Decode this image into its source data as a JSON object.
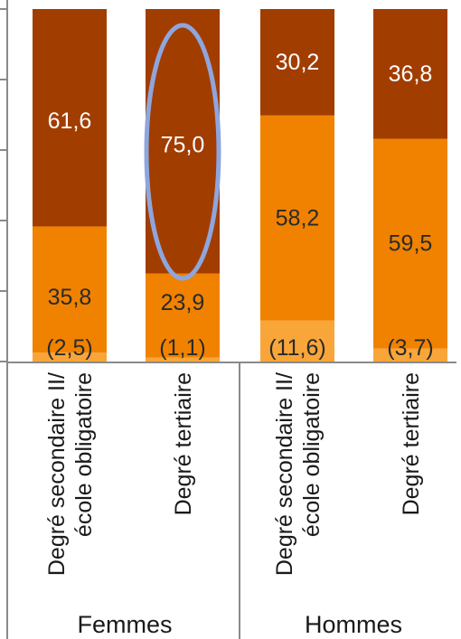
{
  "chart_data": {
    "type": "bar",
    "stacked": true,
    "normalized_percent": true,
    "ylim": [
      0,
      100
    ],
    "groups": [
      {
        "label": "Femmes",
        "categories": [
          "Degré secondaire II/ école obligatoire",
          "Degré tertiaire"
        ]
      },
      {
        "label": "Hommes",
        "categories": [
          "Degré secondaire II/ école obligatoire",
          "Degré tertiaire"
        ]
      }
    ],
    "categories": [
      "Degré secondaire II/ école obligatoire",
      "Degré tertiaire",
      "Degré secondaire II/ école obligatoire",
      "Degré tertiaire"
    ],
    "series": [
      {
        "values": [
          2.5,
          1.1,
          11.6,
          3.7
        ],
        "labels": [
          "(2,5)",
          "(1,1)",
          "(11,6)",
          "(3,7)"
        ],
        "color": "#f8a53a"
      },
      {
        "values": [
          35.8,
          23.9,
          58.2,
          59.5
        ],
        "labels": [
          "35,8",
          "23,9",
          "58,2",
          "59,5"
        ],
        "color": "#f08200"
      },
      {
        "values": [
          61.6,
          75.0,
          30.2,
          36.8
        ],
        "labels": [
          "61,6",
          "75,0",
          "30,2",
          "36,8"
        ],
        "color": "#a23d00"
      }
    ],
    "highlight": {
      "bar_index": 1,
      "color": "#8ea6de"
    },
    "grid": false
  }
}
